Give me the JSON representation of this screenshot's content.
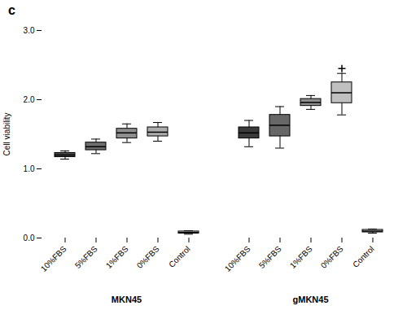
{
  "chart_data": {
    "type": "box",
    "title": "c",
    "ylabel": "Cell viability",
    "ylim": [
      0,
      3
    ],
    "yticks": [
      0,
      1,
      2,
      3
    ],
    "categories": [
      "10%FBS",
      "5%FBS",
      "1%FBS",
      "0%FBS",
      "Control"
    ],
    "groups": [
      {
        "name": "MKN45",
        "colors": [
          "#4a4a4a",
          "#6e6e6e",
          "#8e8e8e",
          "#adadad",
          "#c8c8c8"
        ],
        "boxes": [
          {
            "med": 1.2,
            "q1": 1.17,
            "q3": 1.23,
            "whislo": 1.14,
            "whishi": 1.26,
            "fliers": []
          },
          {
            "med": 1.32,
            "q1": 1.27,
            "q3": 1.38,
            "whislo": 1.22,
            "whishi": 1.43,
            "fliers": []
          },
          {
            "med": 1.52,
            "q1": 1.44,
            "q3": 1.58,
            "whislo": 1.38,
            "whishi": 1.65,
            "fliers": []
          },
          {
            "med": 1.53,
            "q1": 1.47,
            "q3": 1.6,
            "whislo": 1.4,
            "whishi": 1.67,
            "fliers": []
          },
          {
            "med": 0.08,
            "q1": 0.065,
            "q3": 0.095,
            "whislo": 0.055,
            "whishi": 0.105,
            "fliers": []
          }
        ]
      },
      {
        "name": "gMKN45",
        "colors": [
          "#3a3a3a",
          "#676767",
          "#8e8e8e",
          "#c0c0c0",
          "#d5d5d5"
        ],
        "boxes": [
          {
            "med": 1.52,
            "q1": 1.44,
            "q3": 1.6,
            "whislo": 1.32,
            "whishi": 1.7,
            "fliers": []
          },
          {
            "med": 1.63,
            "q1": 1.47,
            "q3": 1.78,
            "whislo": 1.3,
            "whishi": 1.9,
            "fliers": []
          },
          {
            "med": 1.96,
            "q1": 1.91,
            "q3": 2.01,
            "whislo": 1.86,
            "whishi": 2.06,
            "fliers": []
          },
          {
            "med": 2.1,
            "q1": 1.95,
            "q3": 2.25,
            "whislo": 1.78,
            "whishi": 2.38,
            "fliers": [
              2.45
            ]
          },
          {
            "med": 0.1,
            "q1": 0.082,
            "q3": 0.118,
            "whislo": 0.07,
            "whishi": 0.13,
            "fliers": []
          }
        ]
      }
    ]
  }
}
